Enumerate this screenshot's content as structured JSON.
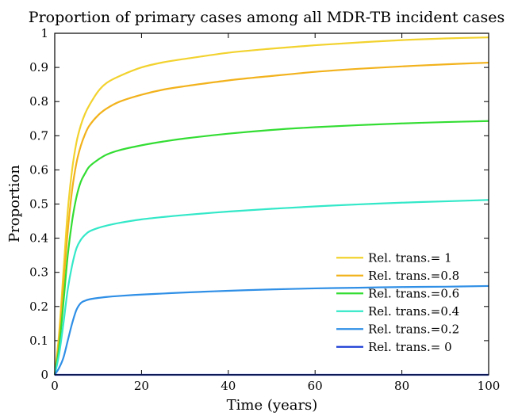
{
  "chart_data": {
    "type": "line",
    "title": "Proportion of primary cases among all MDR-TB incident cases",
    "xlabel": "Time (years)",
    "ylabel": "Proportion",
    "xlim": [
      0,
      100
    ],
    "ylim": [
      0,
      1
    ],
    "xticks": [
      0,
      20,
      40,
      60,
      80,
      100
    ],
    "yticks": [
      0,
      0.1,
      0.2,
      0.3,
      0.4,
      0.5,
      0.6,
      0.7,
      0.8,
      0.9,
      1
    ],
    "ytick_labels": [
      "0",
      "0.1",
      "0.2",
      "0.3",
      "0.4",
      "0.5",
      "0.6",
      "0.7",
      "0.8",
      "0.9",
      "1"
    ],
    "grid": false,
    "legend_position": "bottom-right",
    "series": [
      {
        "name": "Rel. trans.= 1",
        "color": "#f2d22e",
        "x": [
          0,
          1,
          2,
          3,
          4,
          5,
          6,
          7,
          8,
          10,
          12,
          15,
          20,
          25,
          30,
          40,
          50,
          60,
          70,
          80,
          90,
          100
        ],
        "y": [
          0,
          0.12,
          0.3,
          0.48,
          0.6,
          0.68,
          0.73,
          0.765,
          0.79,
          0.83,
          0.855,
          0.875,
          0.9,
          0.915,
          0.925,
          0.943,
          0.955,
          0.965,
          0.973,
          0.98,
          0.985,
          0.988
        ]
      },
      {
        "name": "Rel. trans.=0.8",
        "color": "#f2b21c",
        "x": [
          0,
          1,
          2,
          3,
          4,
          5,
          6,
          7,
          8,
          10,
          12,
          15,
          20,
          25,
          30,
          40,
          50,
          60,
          70,
          80,
          90,
          100
        ],
        "y": [
          0,
          0.1,
          0.26,
          0.42,
          0.54,
          0.62,
          0.67,
          0.705,
          0.73,
          0.76,
          0.78,
          0.8,
          0.82,
          0.835,
          0.845,
          0.862,
          0.875,
          0.887,
          0.896,
          0.903,
          0.909,
          0.914
        ]
      },
      {
        "name": "Rel. trans.=0.6",
        "color": "#33dd33",
        "x": [
          0,
          1,
          2,
          3,
          4,
          5,
          6,
          7,
          8,
          10,
          12,
          15,
          20,
          25,
          30,
          40,
          50,
          60,
          70,
          80,
          90,
          100
        ],
        "y": [
          0,
          0.08,
          0.21,
          0.35,
          0.45,
          0.52,
          0.565,
          0.59,
          0.61,
          0.63,
          0.645,
          0.658,
          0.672,
          0.683,
          0.692,
          0.706,
          0.717,
          0.725,
          0.731,
          0.736,
          0.74,
          0.743
        ]
      },
      {
        "name": "Rel. trans.=0.4",
        "color": "#33e8c8",
        "x": [
          0,
          1,
          2,
          3,
          4,
          5,
          6,
          7,
          8,
          10,
          12,
          15,
          20,
          25,
          30,
          40,
          50,
          60,
          70,
          80,
          90,
          100
        ],
        "y": [
          0,
          0.06,
          0.15,
          0.25,
          0.32,
          0.37,
          0.395,
          0.41,
          0.42,
          0.43,
          0.437,
          0.445,
          0.455,
          0.462,
          0.468,
          0.478,
          0.486,
          0.493,
          0.499,
          0.504,
          0.508,
          0.512
        ]
      },
      {
        "name": "Rel. trans.=0.2",
        "color": "#2f8fe6",
        "x": [
          0,
          1,
          2,
          3,
          4,
          5,
          6,
          7,
          8,
          10,
          12,
          15,
          20,
          25,
          30,
          40,
          50,
          60,
          70,
          80,
          90,
          100
        ],
        "y": [
          0,
          0.02,
          0.05,
          0.1,
          0.15,
          0.19,
          0.21,
          0.217,
          0.221,
          0.225,
          0.228,
          0.231,
          0.235,
          0.238,
          0.241,
          0.246,
          0.25,
          0.253,
          0.255,
          0.257,
          0.258,
          0.26
        ]
      },
      {
        "name": "Rel. trans.= 0",
        "color": "#1f3fd6",
        "x": [
          0,
          100
        ],
        "y": [
          0,
          0
        ]
      }
    ]
  }
}
